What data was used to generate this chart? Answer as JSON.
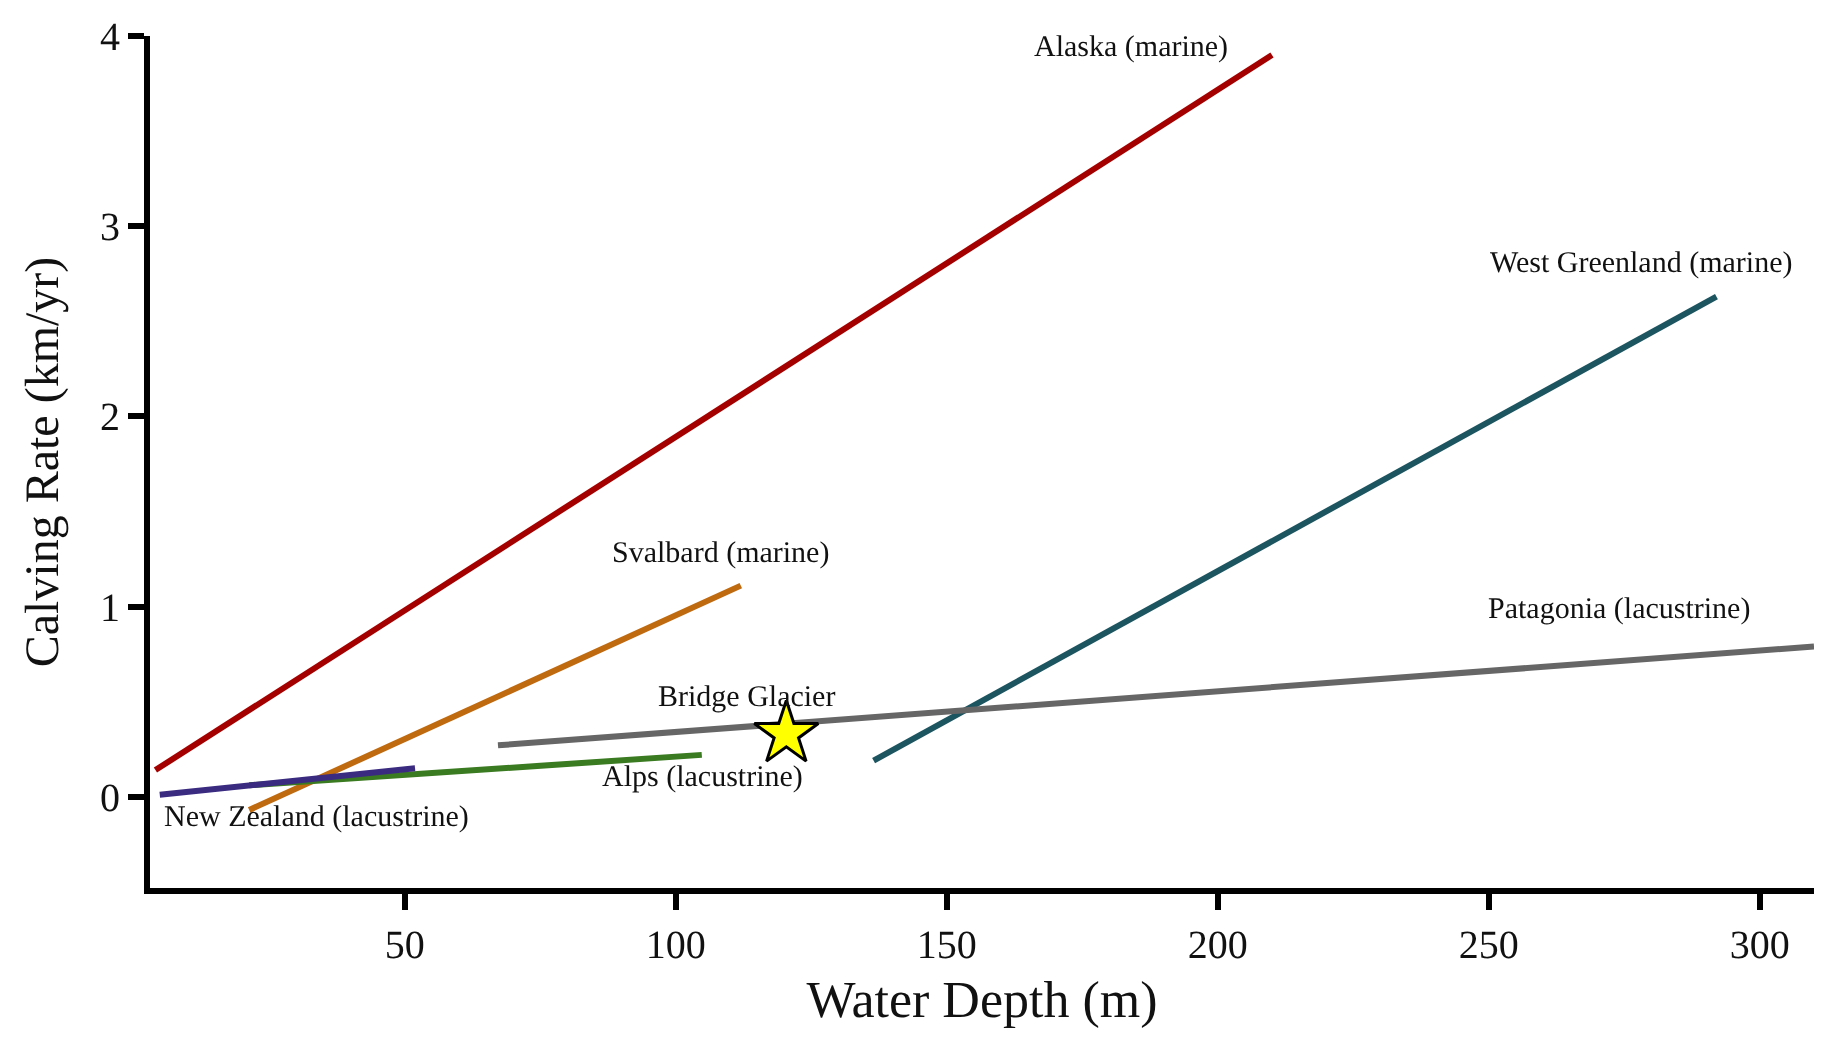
{
  "chart_data": {
    "type": "line",
    "xlabel": "Water Depth (m)",
    "ylabel": "Calving Rate (km/yr)",
    "xlim": [
      3,
      310
    ],
    "ylim": [
      -0.48,
      4
    ],
    "xticks": [
      50,
      100,
      150,
      200,
      250,
      300
    ],
    "yticks": [
      0,
      1,
      2,
      3,
      4
    ],
    "legend": false,
    "marker": "none",
    "line_style": "solid",
    "series": [
      {
        "name": "Alaska (marine)",
        "color": "#a50000",
        "x": [
          4,
          210
        ],
        "values": [
          0.14,
          3.9
        ]
      },
      {
        "name": "West Greenland (marine)",
        "color": "#1c5460",
        "x": [
          136.5,
          292
        ],
        "values": [
          0.19,
          2.63
        ]
      },
      {
        "name": "Svalbard (marine)",
        "color": "#c06a10",
        "x": [
          21.3,
          112
        ],
        "values": [
          -0.07,
          1.11
        ]
      },
      {
        "name": "Patagonia (lacustrine)",
        "color": "#666666",
        "x": [
          67.2,
          310
        ],
        "values": [
          0.27,
          0.79
        ]
      },
      {
        "name": "Alps (lacustrine)",
        "color": "#3a7a20",
        "x": [
          21.3,
          104.8
        ],
        "values": [
          0.06,
          0.22
        ]
      },
      {
        "name": "New Zealand (lacustrine)",
        "color": "#3a2a80",
        "x": [
          4.8,
          51.9
        ],
        "values": [
          0.01,
          0.15
        ]
      },
      {
        "name": "Bridge Glacier",
        "type": "scatter",
        "marker": "star",
        "color": "#ffff00",
        "x": [
          120.4
        ],
        "values": [
          0.33
        ]
      }
    ]
  }
}
